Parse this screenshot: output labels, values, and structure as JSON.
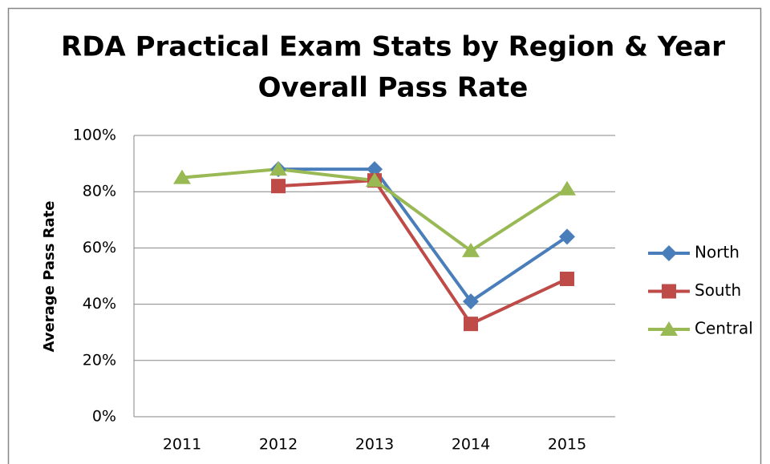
{
  "chart_data": {
    "type": "line",
    "title": "RDA Practical Exam Stats by Region & Year",
    "subtitle": "Overall Pass Rate",
    "y_label": "Average Pass Rate",
    "categories": [
      "2011",
      "2012",
      "2013",
      "2014",
      "2015"
    ],
    "series": [
      {
        "name": "North",
        "color": "#4a7ebb",
        "marker": "diamond",
        "values": [
          null,
          88,
          88,
          41,
          64
        ]
      },
      {
        "name": "South",
        "color": "#be4b48",
        "marker": "square",
        "values": [
          null,
          82,
          84,
          33,
          49
        ]
      },
      {
        "name": "Central",
        "color": "#98b954",
        "marker": "triangle",
        "values": [
          85,
          88,
          84,
          59,
          81
        ]
      }
    ],
    "ylim": [
      0,
      100
    ],
    "yticks": [
      {
        "value": 0,
        "label": "0%"
      },
      {
        "value": 20,
        "label": "20%"
      },
      {
        "value": 40,
        "label": "40%"
      },
      {
        "value": 60,
        "label": "60%"
      },
      {
        "value": 80,
        "label": "80%"
      },
      {
        "value": 100,
        "label": "100%"
      }
    ],
    "grid": true,
    "legend": "right"
  }
}
